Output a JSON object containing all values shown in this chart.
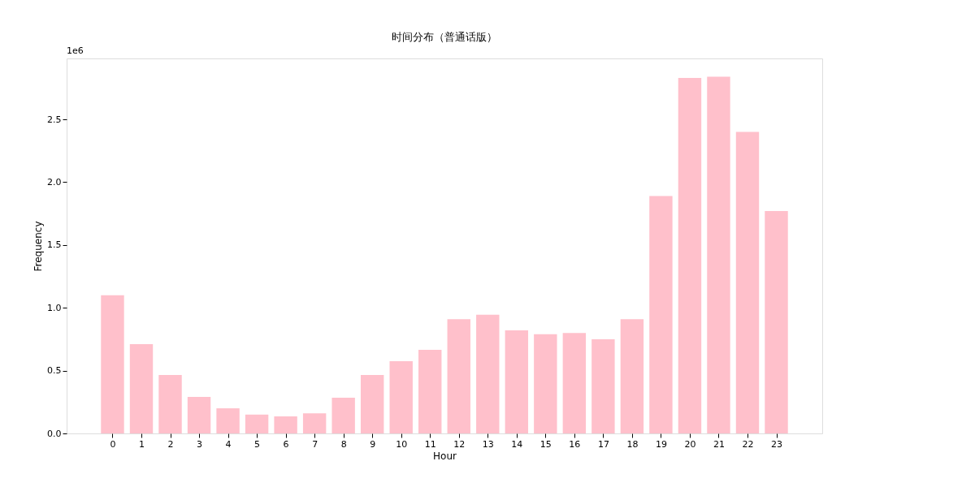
{
  "chart_data": {
    "type": "bar",
    "title": "时间分布（普通话版）",
    "xlabel": "Hour",
    "ylabel": "Frequency",
    "x": [
      0,
      1,
      2,
      3,
      4,
      5,
      6,
      7,
      8,
      9,
      10,
      11,
      12,
      13,
      14,
      15,
      16,
      17,
      18,
      19,
      20,
      21,
      22,
      23
    ],
    "series": [
      {
        "color": "#ffc0cb",
        "values": [
          1.1,
          0.71,
          0.465,
          0.29,
          0.2,
          0.15,
          0.135,
          0.16,
          0.285,
          0.465,
          0.575,
          0.665,
          0.91,
          0.945,
          0.82,
          0.79,
          0.8,
          0.75,
          0.91,
          1.89,
          2.83,
          2.84,
          2.4,
          1.77
        ]
      }
    ],
    "xlim": [
      -1.59,
      24.59
    ],
    "xticks": [
      0,
      1,
      2,
      3,
      4,
      5,
      6,
      7,
      8,
      9,
      10,
      11,
      12,
      13,
      14,
      15,
      16,
      17,
      18,
      19,
      20,
      21,
      22,
      23
    ],
    "ylim": [
      0,
      2.985
    ],
    "yticks": [
      {
        "value": 0,
        "label": "0.0"
      },
      {
        "value": 0.5,
        "label": "0.5"
      },
      {
        "value": 1,
        "label": "1.0"
      },
      {
        "value": 1.5,
        "label": "1.5"
      },
      {
        "value": 2,
        "label": "2.0"
      },
      {
        "value": 2.5,
        "label": "2.5"
      }
    ],
    "annotations": [
      "1e6"
    ],
    "grid": false
  }
}
